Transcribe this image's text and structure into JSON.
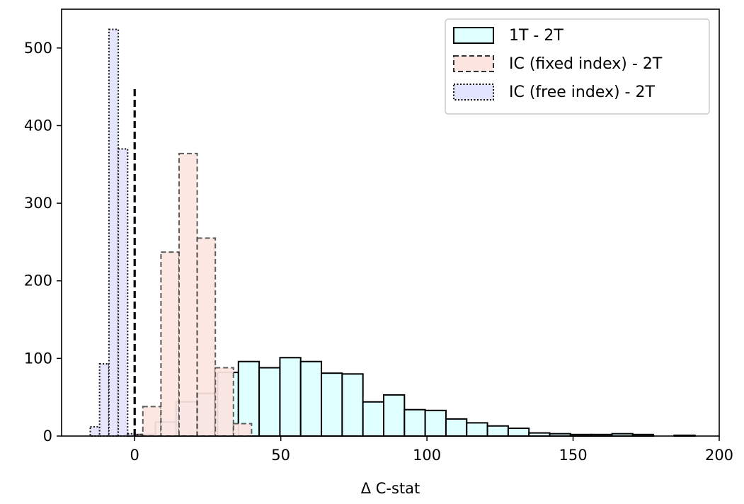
{
  "chart_data": {
    "type": "histogram",
    "xlabel": "Δ C-stat",
    "ylabel": "",
    "xlim": [
      -25,
      200
    ],
    "ylim": [
      0,
      550
    ],
    "xticks": [
      0,
      50,
      100,
      150,
      200
    ],
    "yticks": [
      0,
      100,
      200,
      300,
      400,
      500
    ],
    "grid": false,
    "legend_position": "top-right",
    "reference_line": {
      "x": 0,
      "y_top": 450,
      "style": "dashed"
    },
    "series": [
      {
        "name": "1T - 2T",
        "color": "#e0ffff",
        "edge": "#000000",
        "linestyle": "solid",
        "bin_width": 7.1,
        "bins": [
          {
            "x0": 0.0,
            "x1": 7.1,
            "count": 2
          },
          {
            "x0": 7.1,
            "x1": 14.2,
            "count": 18
          },
          {
            "x0": 14.2,
            "x1": 21.3,
            "count": 44
          },
          {
            "x0": 21.3,
            "x1": 28.4,
            "count": 55
          },
          {
            "x0": 28.4,
            "x1": 35.5,
            "count": 82
          },
          {
            "x0": 35.5,
            "x1": 42.6,
            "count": 96
          },
          {
            "x0": 42.6,
            "x1": 49.7,
            "count": 88
          },
          {
            "x0": 49.7,
            "x1": 56.8,
            "count": 101
          },
          {
            "x0": 56.8,
            "x1": 63.9,
            "count": 96
          },
          {
            "x0": 63.9,
            "x1": 71.0,
            "count": 81
          },
          {
            "x0": 71.0,
            "x1": 78.1,
            "count": 80
          },
          {
            "x0": 78.1,
            "x1": 85.2,
            "count": 44
          },
          {
            "x0": 85.2,
            "x1": 92.3,
            "count": 53
          },
          {
            "x0": 92.3,
            "x1": 99.4,
            "count": 34
          },
          {
            "x0": 99.4,
            "x1": 106.5,
            "count": 33
          },
          {
            "x0": 106.5,
            "x1": 113.6,
            "count": 22
          },
          {
            "x0": 113.6,
            "x1": 120.7,
            "count": 17
          },
          {
            "x0": 120.7,
            "x1": 127.8,
            "count": 13
          },
          {
            "x0": 127.8,
            "x1": 134.9,
            "count": 10
          },
          {
            "x0": 134.9,
            "x1": 142.0,
            "count": 4
          },
          {
            "x0": 142.0,
            "x1": 149.1,
            "count": 3
          },
          {
            "x0": 149.1,
            "x1": 156.2,
            "count": 2
          },
          {
            "x0": 156.2,
            "x1": 163.3,
            "count": 2
          },
          {
            "x0": 163.3,
            "x1": 170.4,
            "count": 3
          },
          {
            "x0": 170.4,
            "x1": 177.5,
            "count": 2
          },
          {
            "x0": 177.5,
            "x1": 184.6,
            "count": 0
          },
          {
            "x0": 184.6,
            "x1": 191.7,
            "count": 1
          }
        ]
      },
      {
        "name": "IC (fixed index) - 2T",
        "color": "#fde6e1",
        "edge": "#333333",
        "linestyle": "dashed",
        "bin_width": 6.2,
        "bins": [
          {
            "x0": -3.4,
            "x1": 2.8,
            "count": 2
          },
          {
            "x0": 2.8,
            "x1": 9.0,
            "count": 38
          },
          {
            "x0": 9.0,
            "x1": 15.2,
            "count": 237
          },
          {
            "x0": 15.2,
            "x1": 21.4,
            "count": 364
          },
          {
            "x0": 21.4,
            "x1": 27.6,
            "count": 255
          },
          {
            "x0": 27.6,
            "x1": 33.8,
            "count": 88
          },
          {
            "x0": 33.8,
            "x1": 40.0,
            "count": 16
          }
        ]
      },
      {
        "name": "IC (free index) - 2T",
        "color": "#e3e4fd",
        "edge": "#000000",
        "linestyle": "dotted",
        "bin_width": 3.2,
        "bins": [
          {
            "x0": -15.2,
            "x1": -12.0,
            "count": 12
          },
          {
            "x0": -12.0,
            "x1": -8.8,
            "count": 93
          },
          {
            "x0": -8.8,
            "x1": -5.6,
            "count": 524
          },
          {
            "x0": -5.6,
            "x1": -2.4,
            "count": 370
          },
          {
            "x0": -2.4,
            "x1": 0.8,
            "count": 3
          }
        ]
      }
    ]
  }
}
